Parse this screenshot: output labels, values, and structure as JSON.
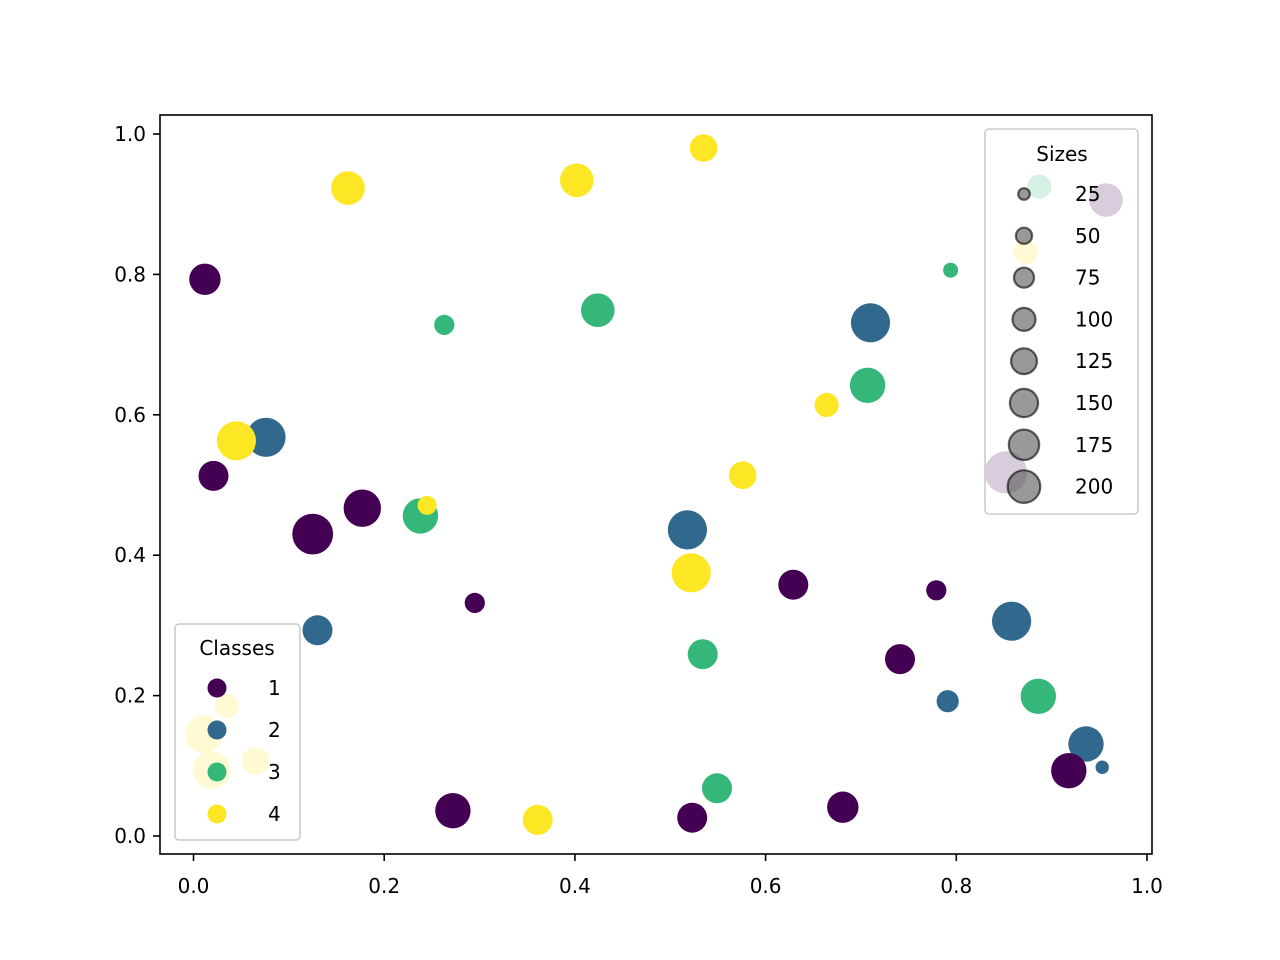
{
  "chart_data": {
    "type": "scatter",
    "title": "",
    "xlabel": "",
    "ylabel": "",
    "xlim": [
      -0.035,
      1.005
    ],
    "ylim": [
      -0.026,
      1.027
    ],
    "x_ticks": [
      0.0,
      0.2,
      0.4,
      0.6,
      0.8,
      1.0
    ],
    "x_tick_labels": [
      "0.0",
      "0.2",
      "0.4",
      "0.6",
      "0.8",
      "1.0"
    ],
    "y_ticks": [
      0.0,
      0.2,
      0.4,
      0.6,
      0.8,
      1.0
    ],
    "y_tick_labels": [
      "0.0",
      "0.2",
      "0.4",
      "0.6",
      "0.8",
      "1.0"
    ],
    "grid": false,
    "colormap": "viridis",
    "class_colors": {
      "1": "#440154",
      "2": "#31688e",
      "3": "#35b779",
      "4": "#fde725"
    },
    "legends": [
      {
        "title": "Classes",
        "position": "lower left",
        "entries": [
          {
            "label": "1",
            "color": "#440154"
          },
          {
            "label": "2",
            "color": "#31688e"
          },
          {
            "label": "3",
            "color": "#35b779"
          },
          {
            "label": "4",
            "color": "#fde725"
          }
        ]
      },
      {
        "title": "Sizes",
        "position": "upper right",
        "entries": [
          {
            "label": "25",
            "size": 25
          },
          {
            "label": "50",
            "size": 50
          },
          {
            "label": "75",
            "size": 75
          },
          {
            "label": "100",
            "size": 100
          },
          {
            "label": "125",
            "size": 125
          },
          {
            "label": "150",
            "size": 150
          },
          {
            "label": "175",
            "size": 175
          },
          {
            "label": "200",
            "size": 200
          }
        ],
        "marker_color": "#555555",
        "marker_alpha": 0.6
      }
    ],
    "points": [
      {
        "x": 0.012,
        "y": 0.793,
        "class": 1,
        "size": 110
      },
      {
        "x": 0.162,
        "y": 0.923,
        "class": 4,
        "size": 125
      },
      {
        "x": 0.402,
        "y": 0.934,
        "class": 4,
        "size": 125
      },
      {
        "x": 0.535,
        "y": 0.98,
        "class": 4,
        "size": 85
      },
      {
        "x": 0.263,
        "y": 0.728,
        "class": 3,
        "size": 45
      },
      {
        "x": 0.424,
        "y": 0.749,
        "class": 3,
        "size": 125
      },
      {
        "x": 0.794,
        "y": 0.806,
        "class": 3,
        "size": 25
      },
      {
        "x": 0.71,
        "y": 0.731,
        "class": 2,
        "size": 170
      },
      {
        "x": 0.707,
        "y": 0.642,
        "class": 3,
        "size": 140
      },
      {
        "x": 0.664,
        "y": 0.614,
        "class": 4,
        "size": 65
      },
      {
        "x": 0.076,
        "y": 0.568,
        "class": 2,
        "size": 170
      },
      {
        "x": 0.045,
        "y": 0.563,
        "class": 4,
        "size": 170
      },
      {
        "x": 0.021,
        "y": 0.513,
        "class": 1,
        "size": 100
      },
      {
        "x": 0.177,
        "y": 0.467,
        "class": 1,
        "size": 155
      },
      {
        "x": 0.125,
        "y": 0.43,
        "class": 1,
        "size": 185
      },
      {
        "x": 0.238,
        "y": 0.456,
        "class": 3,
        "size": 140
      },
      {
        "x": 0.245,
        "y": 0.471,
        "class": 4,
        "size": 40
      },
      {
        "x": 0.576,
        "y": 0.514,
        "class": 4,
        "size": 85
      },
      {
        "x": 0.518,
        "y": 0.436,
        "class": 2,
        "size": 170
      },
      {
        "x": 0.522,
        "y": 0.375,
        "class": 4,
        "size": 170
      },
      {
        "x": 0.295,
        "y": 0.332,
        "class": 1,
        "size": 45
      },
      {
        "x": 0.13,
        "y": 0.293,
        "class": 2,
        "size": 100
      },
      {
        "x": 0.629,
        "y": 0.358,
        "class": 1,
        "size": 100
      },
      {
        "x": 0.779,
        "y": 0.35,
        "class": 1,
        "size": 45
      },
      {
        "x": 0.858,
        "y": 0.306,
        "class": 2,
        "size": 170
      },
      {
        "x": 0.534,
        "y": 0.259,
        "class": 3,
        "size": 100
      },
      {
        "x": 0.741,
        "y": 0.252,
        "class": 1,
        "size": 100
      },
      {
        "x": 0.791,
        "y": 0.192,
        "class": 2,
        "size": 55
      },
      {
        "x": 0.886,
        "y": 0.199,
        "class": 3,
        "size": 140
      },
      {
        "x": 0.936,
        "y": 0.131,
        "class": 2,
        "size": 140
      },
      {
        "x": 0.918,
        "y": 0.093,
        "class": 1,
        "size": 140
      },
      {
        "x": 0.953,
        "y": 0.098,
        "class": 2,
        "size": 20
      },
      {
        "x": 0.272,
        "y": 0.036,
        "class": 1,
        "size": 140
      },
      {
        "x": 0.361,
        "y": 0.023,
        "class": 4,
        "size": 100
      },
      {
        "x": 0.523,
        "y": 0.026,
        "class": 1,
        "size": 100
      },
      {
        "x": 0.549,
        "y": 0.068,
        "class": 3,
        "size": 100
      },
      {
        "x": 0.681,
        "y": 0.041,
        "class": 1,
        "size": 110
      },
      {
        "x": 0.887,
        "y": 0.925,
        "class": 3,
        "size": 65
      },
      {
        "x": 0.957,
        "y": 0.906,
        "class": 1,
        "size": 125
      },
      {
        "x": 0.873,
        "y": 0.832,
        "class": 4,
        "size": 65
      },
      {
        "x": 0.852,
        "y": 0.518,
        "class": 1,
        "size": 200
      },
      {
        "x": 0.035,
        "y": 0.185,
        "class": 4,
        "size": 65
      },
      {
        "x": 0.011,
        "y": 0.145,
        "class": 4,
        "size": 155
      },
      {
        "x": 0.019,
        "y": 0.094,
        "class": 4,
        "size": 155
      },
      {
        "x": 0.065,
        "y": 0.107,
        "class": 4,
        "size": 85
      }
    ]
  }
}
